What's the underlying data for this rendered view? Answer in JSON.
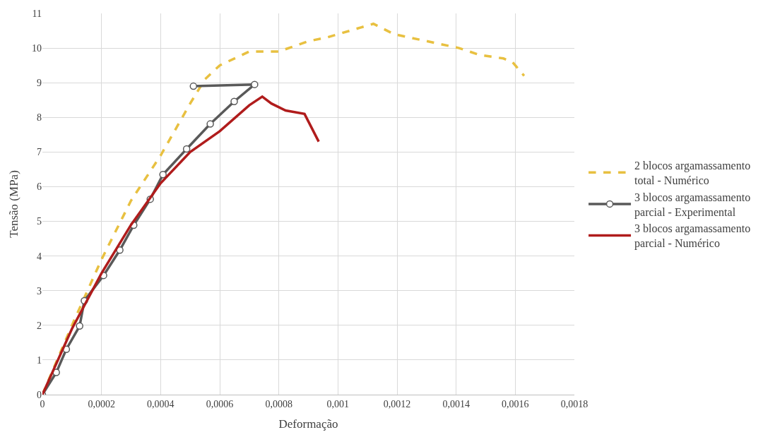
{
  "chart_data": {
    "type": "line",
    "xlabel": "Deformação",
    "ylabel": "Tensão (MPa)",
    "xlim": [
      0,
      0.0018
    ],
    "ylim": [
      0,
      11
    ],
    "xticks": [
      0,
      {
        "value": 0.0002,
        "label": "0,0002"
      },
      {
        "value": 0.0004,
        "label": "0,0004"
      },
      {
        "value": 0.0006,
        "label": "0,0006"
      },
      {
        "value": 0.0008,
        "label": "0,0008"
      },
      {
        "value": 0.001,
        "label": "0,001"
      },
      {
        "value": 0.0012,
        "label": "0,0012"
      },
      {
        "value": 0.0014,
        "label": "0,0014"
      },
      {
        "value": 0.0016,
        "label": "0,0016"
      },
      {
        "value": 0.0018,
        "label": "0,0018"
      }
    ],
    "yticks": [
      0,
      1,
      2,
      3,
      4,
      5,
      6,
      7,
      8,
      9,
      10,
      11
    ],
    "grid": true,
    "legend": "right",
    "series": [
      {
        "name": "2 blocos argamassamento total - Numérico",
        "color": "#e8c040",
        "line_style": "dashed",
        "marker": "none",
        "x": [
          0,
          0.0001,
          0.0002,
          0.0003,
          0.0004,
          0.0005,
          0.00055,
          0.0006,
          0.0007,
          0.00075,
          0.0008,
          0.0009,
          0.00096,
          0.00112,
          0.00119,
          0.0013,
          0.00141,
          0.00148,
          0.00156,
          0.00159,
          0.00163
        ],
        "values": [
          0,
          2.0,
          3.9,
          5.6,
          6.9,
          8.4,
          9.1,
          9.5,
          9.9,
          9.9,
          9.9,
          10.2,
          10.3,
          10.7,
          10.4,
          10.2,
          10.0,
          9.8,
          9.7,
          9.6,
          9.2
        ]
      },
      {
        "name": "3 blocos argamassamento parcial - Experimental",
        "color": "#595959",
        "line_style": "solid",
        "marker": "circle",
        "x": [
          0,
          4.7e-05,
          8.1e-05,
          0.000126,
          0.000142,
          0.000207,
          0.000262,
          0.000309,
          0.000365,
          0.000408,
          0.000488,
          0.000568,
          0.000649,
          0.000718,
          0.000511
        ],
        "values": [
          0,
          0.64,
          1.31,
          1.98,
          2.71,
          3.44,
          4.17,
          4.89,
          5.64,
          6.35,
          7.09,
          7.81,
          8.46,
          8.95,
          8.9
        ]
      },
      {
        "name": "3 blocos argamassamento parcial - Numérico",
        "color": "#b01c1c",
        "line_style": "solid",
        "marker": "none",
        "x": [
          0,
          0.0001,
          0.0002,
          0.0003,
          0.0004,
          0.0005,
          0.0006,
          0.0007,
          0.000744,
          0.000775,
          0.000823,
          0.000887,
          0.000935
        ],
        "values": [
          0,
          1.9,
          3.5,
          4.9,
          6.1,
          7.0,
          7.6,
          8.35,
          8.6,
          8.4,
          8.2,
          8.1,
          7.3
        ]
      }
    ]
  }
}
